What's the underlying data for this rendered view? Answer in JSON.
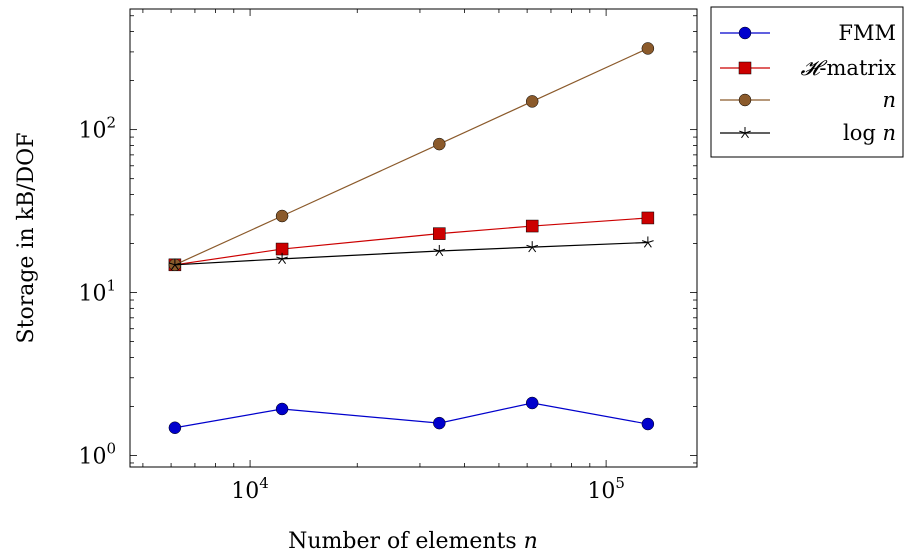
{
  "chart_data": {
    "type": "line",
    "xlabel": "Number of elements n",
    "ylabel": "Storage in kB/DOF",
    "xscale": "log",
    "yscale": "log",
    "xlim": [
      4600,
      180000
    ],
    "ylim": [
      0.85,
      550
    ],
    "xticks": [
      {
        "value": 10000,
        "base": "10",
        "exp": "4"
      },
      {
        "value": 100000,
        "base": "10",
        "exp": "5"
      }
    ],
    "yticks": [
      {
        "value": 1,
        "base": "10",
        "exp": "0"
      },
      {
        "value": 10,
        "base": "10",
        "exp": "1"
      },
      {
        "value": 100,
        "base": "10",
        "exp": "2"
      }
    ],
    "legend_position": "outside-top-right",
    "grid": false,
    "series": [
      {
        "name": "FMM",
        "color": "#0000cc",
        "marker": "circle",
        "x": [
          6150,
          12300,
          34000,
          62000,
          131000
        ],
        "y": [
          1.48,
          1.93,
          1.58,
          2.1,
          1.56
        ]
      },
      {
        "name": "𝓗-matrix",
        "color": "#cc0000",
        "marker": "square",
        "x": [
          6150,
          12300,
          34000,
          62000,
          131000
        ],
        "y": [
          14.8,
          18.5,
          23,
          25.6,
          28.7
        ]
      },
      {
        "name": "n",
        "color": "#8b5a2b",
        "marker": "circle",
        "x": [
          6150,
          12300,
          34000,
          62000,
          131000
        ],
        "y": [
          14.8,
          29.5,
          81.5,
          149,
          315
        ]
      },
      {
        "name": "log n",
        "color": "#000000",
        "marker": "star",
        "x": [
          6150,
          12300,
          34000,
          62000,
          131000
        ],
        "y": [
          14.8,
          16.1,
          18,
          19,
          20.3
        ]
      }
    ]
  }
}
